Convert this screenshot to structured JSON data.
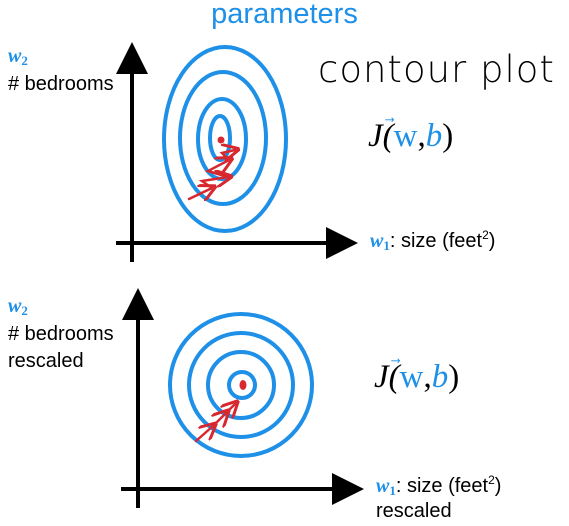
{
  "title": "parameters",
  "handwritten_note": "contour plot",
  "colors": {
    "blue": "#1e90e8",
    "red": "#d7282f",
    "axis": "#000000"
  },
  "top_plot": {
    "y_var": "w",
    "y_sub": "2",
    "y_label": "# bedrooms",
    "x_var": "w",
    "x_sub": "1",
    "x_label_pre": ": size (feet",
    "x_sup": "2",
    "x_label_post": ")",
    "func": {
      "J": "J(",
      "w": "w",
      "comma": ",",
      "b": "b",
      "close": ")"
    }
  },
  "bottom_plot": {
    "y_var": "w",
    "y_sub": "2",
    "y_label": "# bedrooms",
    "y_label2": "rescaled",
    "x_var": "w",
    "x_sub": "1",
    "x_label_pre": ": size (feet",
    "x_sup": "2",
    "x_label_post": ")",
    "x_label2": "rescaled",
    "func": {
      "J": "J(",
      "w": "w",
      "comma": ",",
      "b": "b",
      "close": ")"
    }
  }
}
